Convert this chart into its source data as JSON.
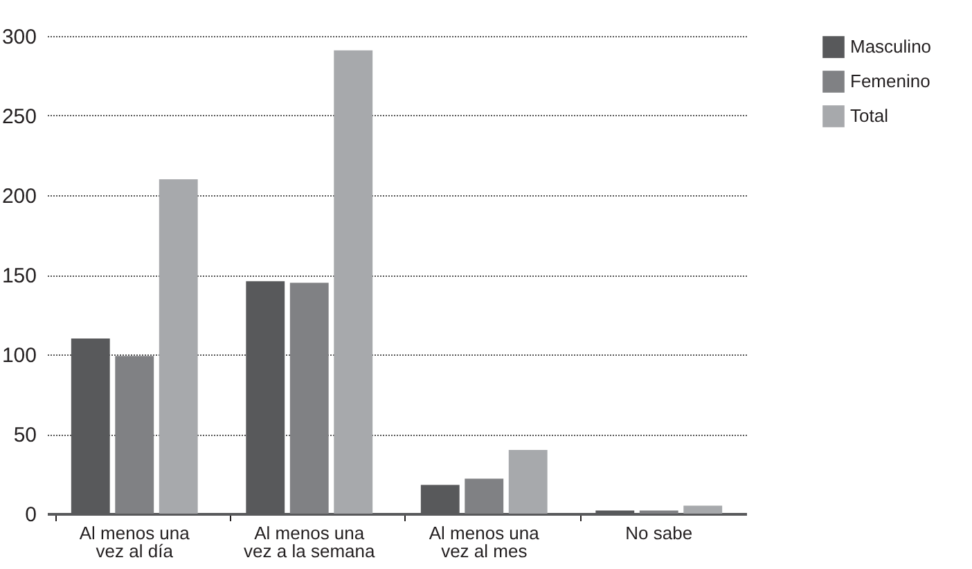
{
  "chart_data": {
    "type": "bar",
    "categories": [
      "Al menos una vez al día",
      "Al menos una vez a la semana",
      "Al menos una vez al mes",
      "No sabe"
    ],
    "series": [
      {
        "name": "Masculino",
        "color": "#58595b",
        "values": [
          110,
          146,
          18,
          2
        ]
      },
      {
        "name": "Femenino",
        "color": "#808184",
        "values": [
          99,
          145,
          22,
          2
        ]
      },
      {
        "name": "Total",
        "color": "#a7a9ac",
        "values": [
          210,
          291,
          40,
          5
        ]
      }
    ],
    "ylim": [
      0,
      300
    ],
    "yticks": [
      0,
      50,
      100,
      150,
      200,
      250,
      300
    ],
    "grid": "y",
    "legend": "top right"
  }
}
